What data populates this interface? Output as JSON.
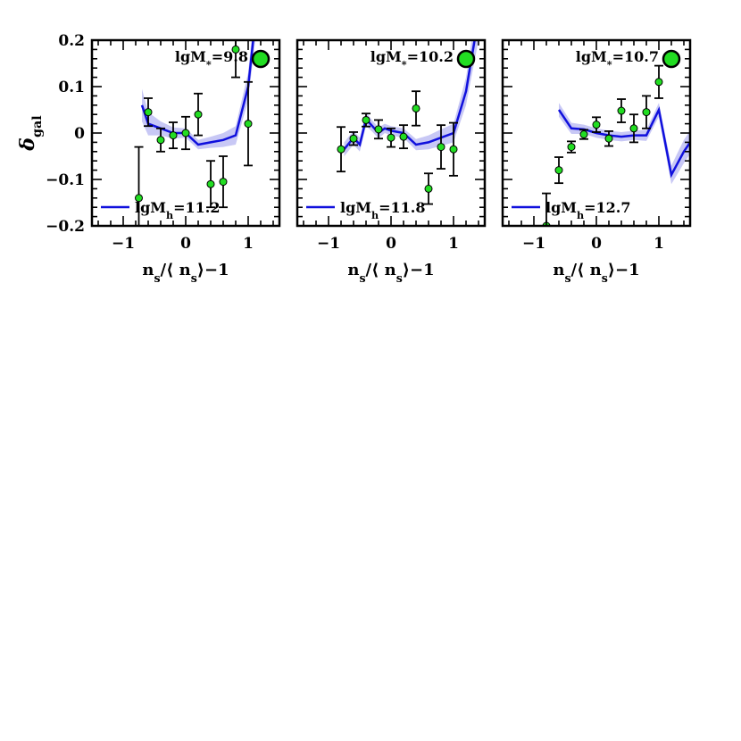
{
  "chart_data": [
    {
      "type": "line+scatter",
      "xlabel": "n_s/⟨n_s⟩−1",
      "ylabel": "δ_gal",
      "xlim": [
        -1.5,
        1.5
      ],
      "ylim": [
        -0.2,
        0.2
      ],
      "xticks": [
        -1,
        0,
        1
      ],
      "yticks": [
        -0.2,
        -0.1,
        0,
        0.1,
        0.2
      ],
      "ytick_labels": [
        "−0.2",
        "−0.1",
        "0",
        "0.1",
        "0.2"
      ],
      "xtick_labels": [
        "−1",
        "0",
        "1"
      ],
      "panel_label": "lgM*=9.8",
      "legend_label": "lgMh=11.2",
      "colors": {
        "line": "#1010dd",
        "band": "#c8c8f5",
        "points": "#22dd22"
      },
      "model": {
        "x": [
          -0.7,
          -0.6,
          -0.4,
          -0.2,
          0.0,
          0.2,
          0.4,
          0.6,
          0.8,
          1.0,
          1.2
        ],
        "y": [
          0.06,
          0.02,
          0.01,
          0.0,
          0.0,
          -0.025,
          -0.02,
          -0.015,
          -0.005,
          0.1,
          0.35
        ],
        "band": [
          0.035,
          0.025,
          0.015,
          0.012,
          0.01,
          0.01,
          0.012,
          0.015,
          0.02,
          0.03,
          0.05
        ]
      },
      "points": [
        {
          "x": -0.75,
          "y": -0.14,
          "err": 0.11
        },
        {
          "x": -0.6,
          "y": 0.045,
          "err": 0.03
        },
        {
          "x": -0.4,
          "y": -0.015,
          "err": 0.025
        },
        {
          "x": -0.2,
          "y": -0.005,
          "err": 0.028
        },
        {
          "x": 0.0,
          "y": 0.0,
          "err": 0.035
        },
        {
          "x": 0.2,
          "y": 0.04,
          "err": 0.045
        },
        {
          "x": 0.4,
          "y": -0.11,
          "err": 0.05
        },
        {
          "x": 0.6,
          "y": -0.105,
          "err": 0.055
        },
        {
          "x": 0.8,
          "y": 0.18,
          "err": 0.06
        },
        {
          "x": 1.0,
          "y": 0.02,
          "err": 0.09
        }
      ]
    },
    {
      "type": "line+scatter",
      "xlabel": "n_s/⟨n_s⟩−1",
      "xlim": [
        -1.5,
        1.5
      ],
      "ylim": [
        -0.2,
        0.2
      ],
      "xticks": [
        -1,
        0,
        1
      ],
      "xtick_labels": [
        "−1",
        "0",
        "1"
      ],
      "panel_label": "lgM*=10.2",
      "legend_label": "lgMh=11.8",
      "colors": {
        "line": "#1010dd",
        "band": "#c8c8f5",
        "points": "#22dd22"
      },
      "model": {
        "x": [
          -0.75,
          -0.6,
          -0.5,
          -0.4,
          -0.3,
          -0.2,
          -0.1,
          0.0,
          0.2,
          0.4,
          0.6,
          0.8,
          1.0,
          1.2,
          1.4
        ],
        "y": [
          -0.035,
          -0.01,
          -0.025,
          0.03,
          0.015,
          0.0,
          0.01,
          0.005,
          0.0,
          -0.025,
          -0.02,
          -0.01,
          0.0,
          0.09,
          0.25
        ],
        "band": [
          0.015,
          0.015,
          0.015,
          0.015,
          0.012,
          0.012,
          0.01,
          0.01,
          0.01,
          0.012,
          0.015,
          0.018,
          0.02,
          0.03,
          0.05
        ]
      },
      "points": [
        {
          "x": -0.8,
          "y": -0.035,
          "err": 0.048
        },
        {
          "x": -0.6,
          "y": -0.012,
          "err": 0.014
        },
        {
          "x": -0.4,
          "y": 0.028,
          "err": 0.014
        },
        {
          "x": -0.2,
          "y": 0.008,
          "err": 0.02
        },
        {
          "x": 0.0,
          "y": -0.01,
          "err": 0.02
        },
        {
          "x": 0.2,
          "y": -0.008,
          "err": 0.025
        },
        {
          "x": 0.4,
          "y": 0.053,
          "err": 0.037
        },
        {
          "x": 0.6,
          "y": -0.12,
          "err": 0.033
        },
        {
          "x": 0.8,
          "y": -0.03,
          "err": 0.047
        },
        {
          "x": 1.0,
          "y": -0.035,
          "err": 0.057
        }
      ]
    },
    {
      "type": "line+scatter",
      "xlabel": "n_s/⟨n_s⟩−1",
      "xlim": [
        -1.5,
        1.5
      ],
      "ylim": [
        -0.2,
        0.2
      ],
      "xticks": [
        -1,
        0,
        1
      ],
      "xtick_labels": [
        "−1",
        "0",
        "1"
      ],
      "panel_label": "lgM*=10.7",
      "legend_label": "lgMh=12.7",
      "colors": {
        "line": "#1010dd",
        "band": "#c8c8f5",
        "points": "#22dd22"
      },
      "model": {
        "x": [
          -0.6,
          -0.4,
          -0.2,
          0.0,
          0.2,
          0.4,
          0.6,
          0.8,
          1.0,
          1.2,
          1.4,
          1.5
        ],
        "y": [
          0.05,
          0.01,
          0.008,
          0.0,
          -0.005,
          -0.008,
          -0.005,
          -0.005,
          0.05,
          -0.09,
          -0.04,
          -0.02
        ],
        "band": [
          0.015,
          0.012,
          0.01,
          0.01,
          0.01,
          0.01,
          0.01,
          0.012,
          0.015,
          0.02,
          0.025,
          0.025
        ]
      },
      "points": [
        {
          "x": -0.8,
          "y": -0.2,
          "err": 0.07
        },
        {
          "x": -0.6,
          "y": -0.08,
          "err": 0.028
        },
        {
          "x": -0.4,
          "y": -0.03,
          "err": 0.012
        },
        {
          "x": -0.2,
          "y": -0.003,
          "err": 0.01
        },
        {
          "x": 0.0,
          "y": 0.018,
          "err": 0.016
        },
        {
          "x": 0.2,
          "y": -0.012,
          "err": 0.016
        },
        {
          "x": 0.4,
          "y": 0.048,
          "err": 0.025
        },
        {
          "x": 0.6,
          "y": 0.01,
          "err": 0.03
        },
        {
          "x": 0.8,
          "y": 0.045,
          "err": 0.035
        },
        {
          "x": 1.0,
          "y": 0.11,
          "err": 0.035
        }
      ]
    }
  ]
}
